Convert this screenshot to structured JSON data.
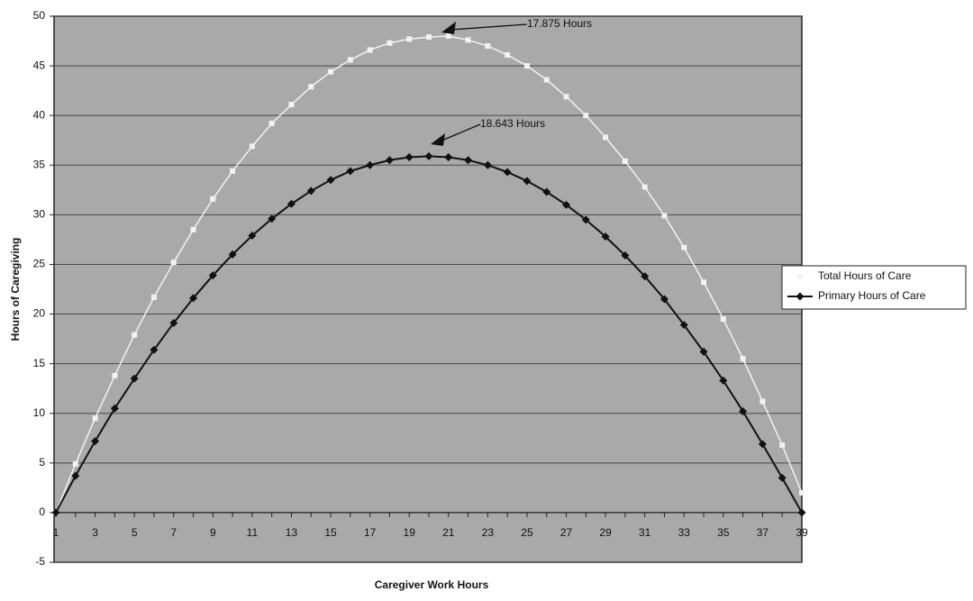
{
  "chart_data": {
    "type": "line",
    "x_label": "Caregiver Work Hours",
    "y_label": "Hours of Caregiving",
    "categories": [
      "1",
      null,
      "3",
      null,
      "5",
      null,
      "7",
      null,
      "9",
      null,
      "11",
      null,
      "13",
      null,
      "15",
      null,
      "17",
      null,
      "19",
      null,
      "21",
      null,
      "23",
      null,
      "25",
      null,
      "27",
      null,
      "29",
      null,
      "31",
      null,
      "33",
      null,
      "35",
      null,
      "37",
      null,
      "39"
    ],
    "series": [
      {
        "name": "Total Hours of Care",
        "color": "#f2f2f2",
        "marker": "square",
        "values": [
          0,
          4.9,
          9.5,
          13.8,
          17.9,
          21.7,
          25.2,
          28.5,
          31.6,
          34.4,
          36.9,
          39.2,
          41.1,
          42.9,
          44.4,
          45.6,
          46.6,
          47.3,
          47.7,
          47.9,
          48.0,
          47.6,
          47.0,
          46.1,
          45.0,
          43.6,
          41.9,
          40.0,
          37.8,
          35.4,
          32.8,
          29.9,
          26.7,
          23.2,
          19.5,
          15.5,
          11.2,
          6.8,
          2.0
        ]
      },
      {
        "name": "Primary Hours of Care",
        "color": "#111111",
        "marker": "diamond",
        "values": [
          0,
          3.7,
          7.2,
          10.5,
          13.5,
          16.4,
          19.1,
          21.6,
          23.9,
          26.0,
          27.9,
          29.6,
          31.1,
          32.4,
          33.5,
          34.4,
          35.0,
          35.5,
          35.8,
          35.9,
          35.8,
          35.5,
          35.0,
          34.3,
          33.4,
          32.3,
          31.0,
          29.5,
          27.8,
          25.9,
          23.8,
          21.5,
          18.9,
          16.2,
          13.3,
          10.2,
          6.9,
          3.5,
          0
        ]
      }
    ],
    "ylim": [
      -5,
      50
    ],
    "yticks": [
      -5,
      0,
      5,
      10,
      15,
      20,
      25,
      30,
      35,
      40,
      45,
      50
    ],
    "grid": true,
    "legend": "right",
    "annotations": [
      {
        "text": "17.875 Hours"
      },
      {
        "text": "18.643 Hours"
      }
    ]
  }
}
